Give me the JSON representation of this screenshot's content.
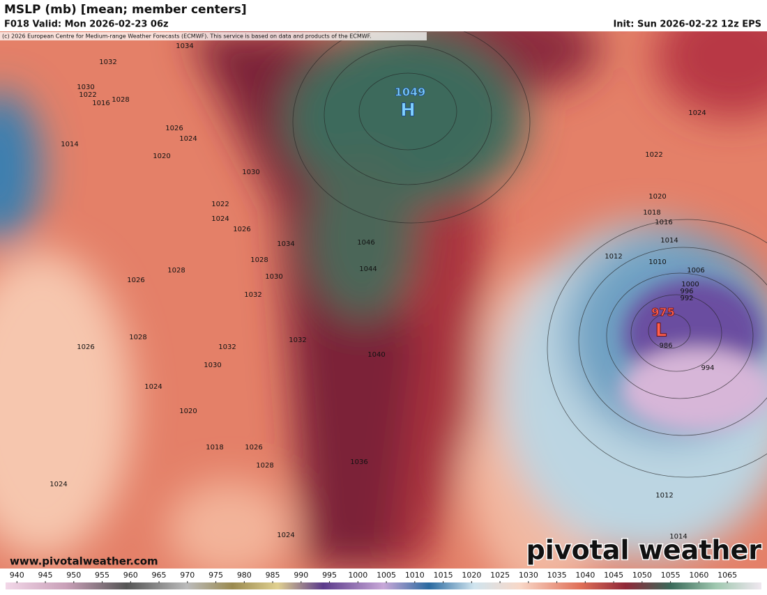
{
  "header": {
    "title": "MSLP (mb) [mean; member centers]",
    "valid": "F018 Valid: Mon 2026-02-23 06z",
    "init": "Init: Sun 2026-02-22 12z EPS",
    "credit": "(c) 2026 European Centre for Medium-range Weather Forecasts (ECMWF). This service is based on data and products of the ECMWF."
  },
  "map": {
    "centers": [
      {
        "label": "1049",
        "symbol": "H"
      },
      {
        "label": "975",
        "symbol": "L"
      }
    ],
    "contour_labels": [
      "1034",
      "1032",
      "1030",
      "1022",
      "1028",
      "1016",
      "1026",
      "1024",
      "1014",
      "1020",
      "1030",
      "1022",
      "1024",
      "1026",
      "1034",
      "1046",
      "1028",
      "1044",
      "1028",
      "1026",
      "1030",
      "1032",
      "1028",
      "1032",
      "1032",
      "1040",
      "1026",
      "1030",
      "1024",
      "1020",
      "1018",
      "1026",
      "1028",
      "1036",
      "1024",
      "1024",
      "1024",
      "1022",
      "1020",
      "1018",
      "1016",
      "1014",
      "1012",
      "1010",
      "1006",
      "1000",
      "996",
      "992",
      "986",
      "994",
      "1012",
      "1014"
    ]
  },
  "colorbar": {
    "lim": [
      938,
      1071
    ],
    "ticks": [
      940,
      945,
      950,
      955,
      960,
      965,
      970,
      975,
      980,
      985,
      990,
      995,
      1000,
      1005,
      1010,
      1015,
      1020,
      1025,
      1030,
      1035,
      1040,
      1045,
      1050,
      1055,
      1060,
      1065
    ]
  },
  "footer": {
    "website": "www.pivotalweather.com",
    "brand": "pivotal weather"
  }
}
